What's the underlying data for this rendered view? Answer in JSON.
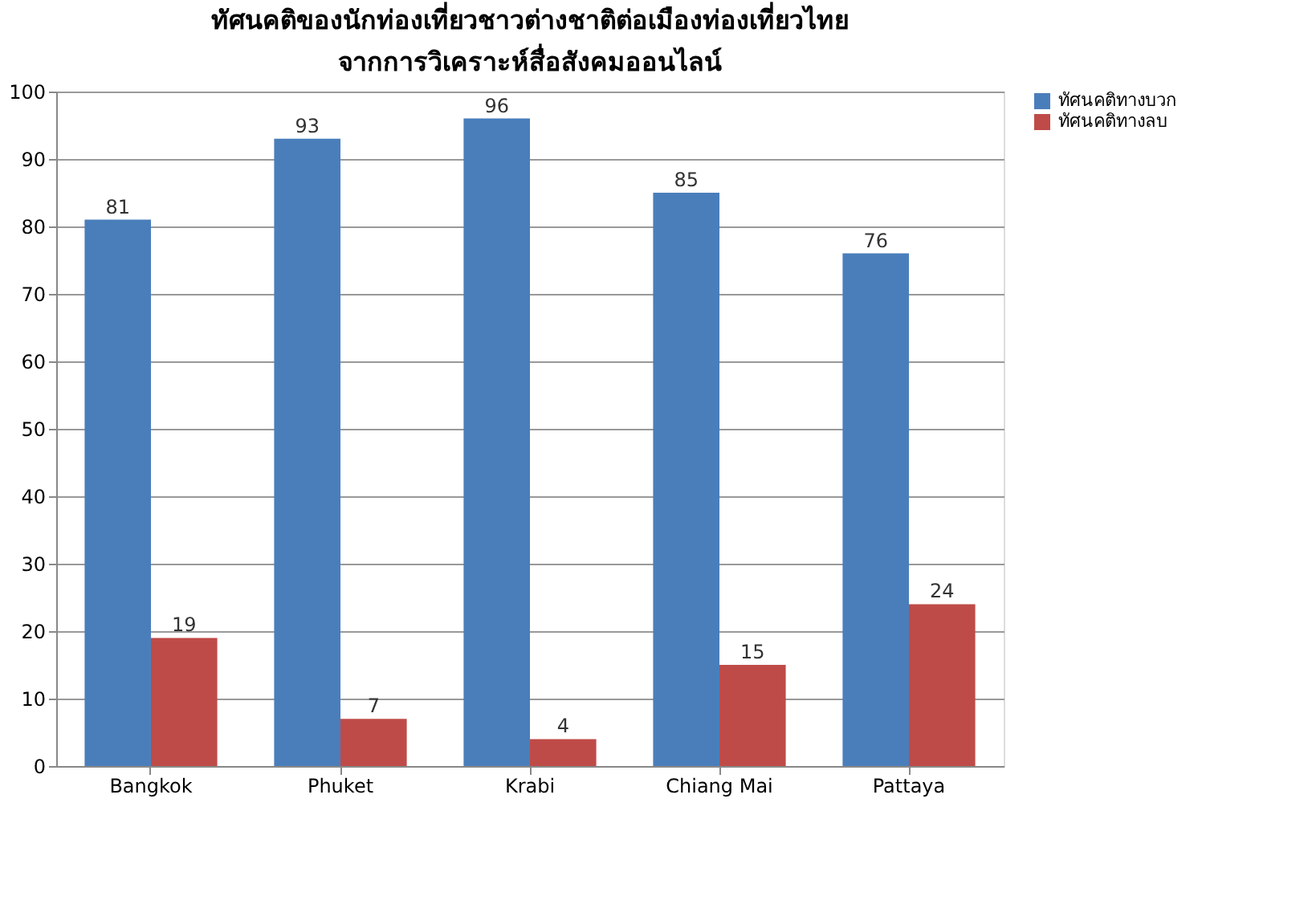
{
  "chart_data": {
    "type": "bar",
    "title": [
      "ทัศนคติของนักท่องเที่ยวชาวต่างชาติต่อเมืองท่องเที่ยวไทย",
      "จากการวิเคราะห์สื่อสังคมออนไลน์"
    ],
    "categories": [
      "Bangkok",
      "Phuket",
      "Krabi",
      "Chiang Mai",
      "Pattaya"
    ],
    "series": [
      {
        "name": "ทัศนคติทางบวก",
        "color": "#4a7ebb",
        "values": [
          81,
          93,
          96,
          85,
          76
        ]
      },
      {
        "name": "ทัศนคติทางลบ",
        "color": "#be4b48",
        "values": [
          19,
          7,
          4,
          15,
          24
        ]
      }
    ],
    "ylim": [
      0,
      100
    ],
    "yticks": [
      0,
      10,
      20,
      30,
      40,
      50,
      60,
      70,
      80,
      90,
      100
    ],
    "grid": "y",
    "legend": "right",
    "data_labels": true
  }
}
